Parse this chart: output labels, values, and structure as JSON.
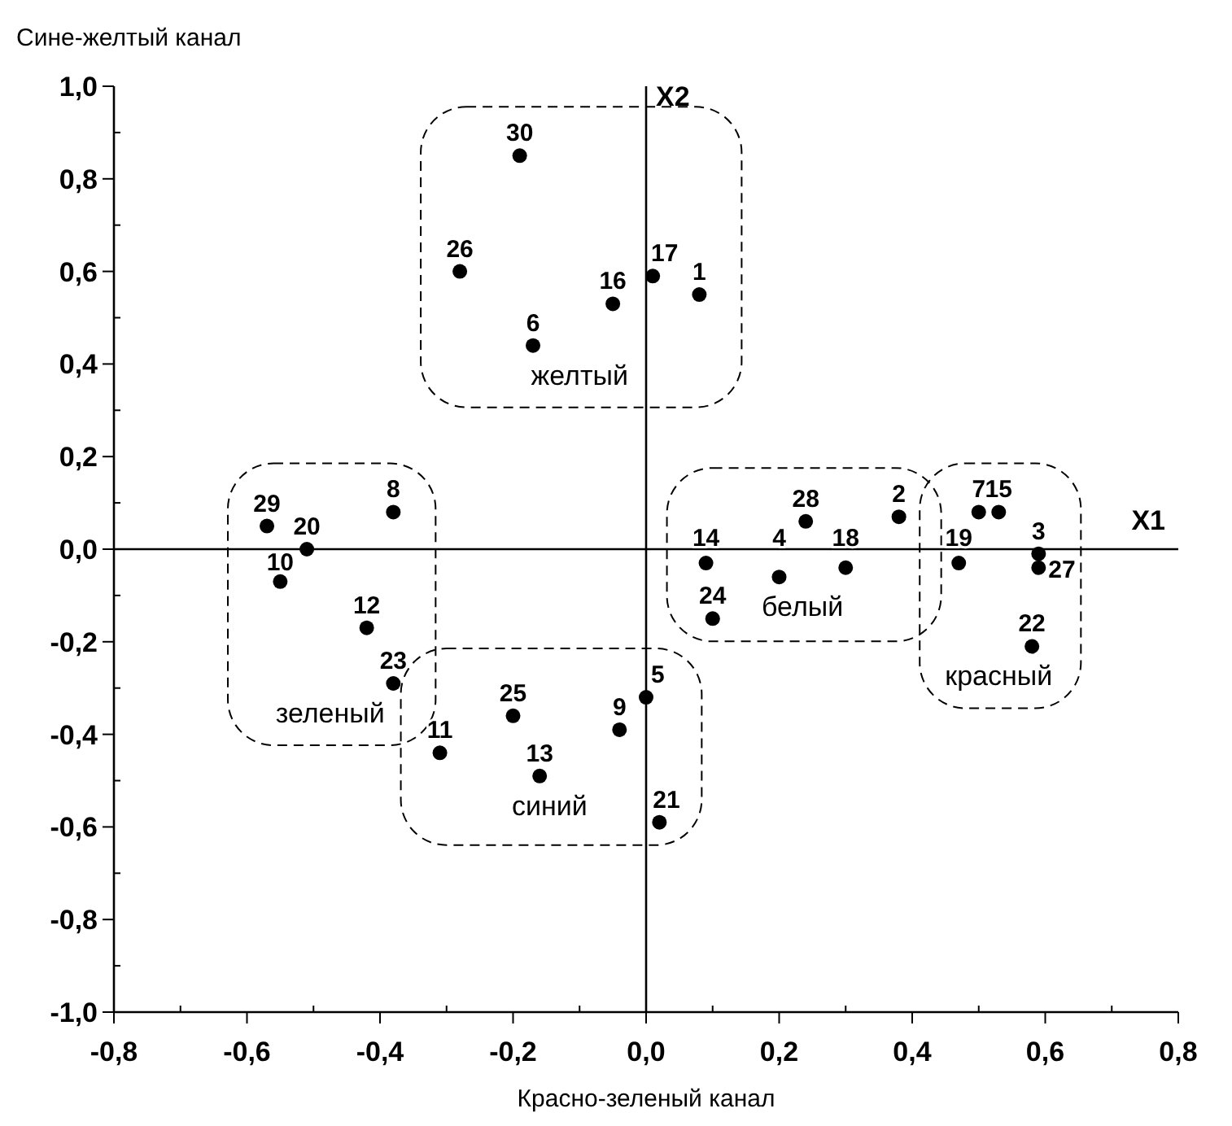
{
  "chart_data": {
    "type": "scatter",
    "xlabel": "Красно-зеленый канал",
    "ylabel": "Сине-желтый канал",
    "xlim": [
      -0.8,
      0.8
    ],
    "ylim": [
      -1.0,
      1.0
    ],
    "xticks": [
      {
        "value": -0.8,
        "label": "-0,8"
      },
      {
        "value": -0.7,
        "label": null
      },
      {
        "value": -0.6,
        "label": "-0,6"
      },
      {
        "value": -0.5,
        "label": null
      },
      {
        "value": -0.4,
        "label": "-0,4"
      },
      {
        "value": -0.3,
        "label": null
      },
      {
        "value": -0.2,
        "label": "-0,2"
      },
      {
        "value": -0.1,
        "label": null
      },
      {
        "value": 0,
        "label": "0,0"
      },
      {
        "value": 0.1,
        "label": null
      },
      {
        "value": 0.2,
        "label": "0,2"
      },
      {
        "value": 0.3,
        "label": null
      },
      {
        "value": 0.4,
        "label": "0,4"
      },
      {
        "value": 0.5,
        "label": null
      },
      {
        "value": 0.6,
        "label": "0,6"
      },
      {
        "value": 0.7,
        "label": null
      },
      {
        "value": 0.8,
        "label": "0,8"
      }
    ],
    "yticks": [
      {
        "value": -1.0,
        "label": "-1,0"
      },
      {
        "value": -0.9,
        "label": null
      },
      {
        "value": -0.8,
        "label": "-0,8"
      },
      {
        "value": -0.7,
        "label": null
      },
      {
        "value": -0.6,
        "label": "-0,6"
      },
      {
        "value": -0.5,
        "label": null
      },
      {
        "value": -0.4,
        "label": "-0,4"
      },
      {
        "value": -0.3,
        "label": null
      },
      {
        "value": -0.2,
        "label": "-0,2"
      },
      {
        "value": -0.1,
        "label": null
      },
      {
        "value": 0,
        "label": "0,0"
      },
      {
        "value": 0.1,
        "label": null
      },
      {
        "value": 0.2,
        "label": "0,2"
      },
      {
        "value": 0.3,
        "label": null
      },
      {
        "value": 0.4,
        "label": "0,4"
      },
      {
        "value": 0.5,
        "label": null
      },
      {
        "value": 0.6,
        "label": "0,6"
      },
      {
        "value": 0.7,
        "label": null
      },
      {
        "value": 0.8,
        "label": "0,8"
      },
      {
        "value": 0.9,
        "label": null
      },
      {
        "value": 1.0,
        "label": "1,0"
      }
    ],
    "grid": false,
    "marker": "circle",
    "series": [
      {
        "name": "желтый",
        "color": "#000000",
        "x": [
          -0.19,
          -0.28,
          -0.17,
          -0.05,
          0.01,
          0.08
        ],
        "values": [
          0.85,
          0.6,
          0.44,
          0.53,
          0.59,
          0.55
        ]
      },
      {
        "name": "белый",
        "color": "#000000",
        "x": [
          0.09,
          0.1,
          0.2,
          0.24,
          0.3,
          0.38
        ],
        "values": [
          -0.03,
          -0.15,
          -0.06,
          0.06,
          -0.04,
          0.07
        ]
      },
      {
        "name": "красный",
        "color": "#000000",
        "x": [
          0.47,
          0.5,
          0.53,
          0.59,
          0.59,
          0.58
        ],
        "values": [
          -0.03,
          0.08,
          0.08,
          -0.01,
          -0.04,
          -0.21
        ]
      },
      {
        "name": "зеленый",
        "color": "#000000",
        "x": [
          -0.57,
          -0.51,
          -0.38,
          -0.55,
          -0.42,
          -0.38
        ],
        "values": [
          0.05,
          0.0,
          0.08,
          -0.07,
          -0.17,
          -0.29
        ]
      },
      {
        "name": "синий",
        "color": "#000000",
        "x": [
          -0.31,
          -0.2,
          -0.16,
          -0.04,
          0.0,
          0.02
        ],
        "values": [
          -0.44,
          -0.36,
          -0.49,
          -0.39,
          -0.32,
          -0.59
        ]
      }
    ],
    "annotations": [
      {
        "text": "30",
        "x": -0.19,
        "y": 0.85
      },
      {
        "text": "26",
        "x": -0.28,
        "y": 0.6
      },
      {
        "text": "6",
        "x": -0.17,
        "y": 0.44
      },
      {
        "text": "16",
        "x": -0.05,
        "y": 0.53
      },
      {
        "text": "17",
        "x": 0.01,
        "y": 0.59
      },
      {
        "text": "1",
        "x": 0.08,
        "y": 0.55
      },
      {
        "text": "14",
        "x": 0.09,
        "y": -0.03
      },
      {
        "text": "24",
        "x": 0.1,
        "y": -0.15
      },
      {
        "text": "4",
        "x": 0.2,
        "y": -0.06
      },
      {
        "text": "28",
        "x": 0.24,
        "y": 0.06
      },
      {
        "text": "18",
        "x": 0.3,
        "y": -0.04
      },
      {
        "text": "2",
        "x": 0.38,
        "y": 0.07
      },
      {
        "text": "19",
        "x": 0.47,
        "y": -0.03
      },
      {
        "text": "7",
        "x": 0.5,
        "y": 0.08
      },
      {
        "text": "15",
        "x": 0.53,
        "y": 0.08
      },
      {
        "text": "3",
        "x": 0.59,
        "y": -0.01
      },
      {
        "text": "27",
        "x": 0.59,
        "y": -0.04
      },
      {
        "text": "22",
        "x": 0.58,
        "y": -0.21
      },
      {
        "text": "29",
        "x": -0.57,
        "y": 0.05
      },
      {
        "text": "20",
        "x": -0.51,
        "y": 0.0
      },
      {
        "text": "8",
        "x": -0.38,
        "y": 0.08
      },
      {
        "text": "10",
        "x": -0.55,
        "y": -0.07
      },
      {
        "text": "12",
        "x": -0.42,
        "y": -0.17
      },
      {
        "text": "23",
        "x": -0.38,
        "y": -0.29
      },
      {
        "text": "11",
        "x": -0.31,
        "y": -0.44
      },
      {
        "text": "25",
        "x": -0.2,
        "y": -0.36
      },
      {
        "text": "13",
        "x": -0.16,
        "y": -0.49
      },
      {
        "text": "9",
        "x": -0.04,
        "y": -0.39
      },
      {
        "text": "5",
        "x": 0.0,
        "y": -0.32
      },
      {
        "text": "21",
        "x": 0.02,
        "y": -0.59
      }
    ],
    "ref_lines": [
      {
        "axis": "x",
        "value": 0,
        "label": "X2"
      },
      {
        "axis": "y",
        "value": 0,
        "label": "X1"
      }
    ]
  }
}
